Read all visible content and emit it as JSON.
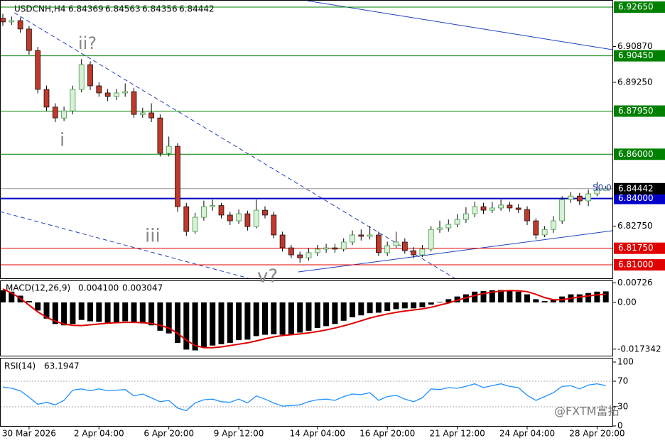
{
  "chart_data": [
    {
      "type": "candlestick",
      "symbol": "USDCNH,H4",
      "categories": [
        null,
        null,
        null,
        "30 Mar 2026",
        null,
        null,
        null,
        null,
        null,
        null,
        null,
        "2 Apr 04:00",
        null,
        null,
        null,
        null,
        null,
        null,
        null,
        "6 Apr 20:00",
        null,
        null,
        null,
        null,
        null,
        null,
        null,
        "9 Apr 12:00",
        null,
        null,
        null,
        null,
        null,
        null,
        null,
        null,
        "14 Apr 04:00",
        null,
        null,
        null,
        null,
        null,
        null,
        null,
        "16 Apr 20:00",
        null,
        null,
        null,
        null,
        null,
        null,
        null,
        "21 Apr 12:00",
        null,
        null,
        null,
        null,
        null,
        null,
        null,
        "24 Apr 04:00",
        null,
        null,
        null,
        null,
        null,
        null,
        null,
        "28 Apr 20:00",
        null
      ],
      "candles": [
        [
          6.9215,
          6.9235,
          6.918,
          6.9198
        ],
        [
          6.9198,
          6.9222,
          6.9185,
          6.9204
        ],
        [
          6.9204,
          6.9218,
          6.915,
          6.9166
        ],
        [
          6.9166,
          6.918,
          6.905,
          6.9069
        ],
        [
          6.9069,
          6.9085,
          6.8875,
          6.8893
        ],
        [
          6.8893,
          6.891,
          6.8795,
          6.8813
        ],
        [
          6.8813,
          6.883,
          6.8745,
          6.8764
        ],
        [
          6.8764,
          6.8815,
          6.875,
          6.8796
        ],
        [
          6.8796,
          6.891,
          6.878,
          6.8893
        ],
        [
          6.8893,
          6.903,
          6.888,
          6.9005
        ],
        [
          6.9005,
          6.902,
          6.889,
          6.8909
        ],
        [
          6.8909,
          6.8925,
          6.886,
          6.8877
        ],
        [
          6.8877,
          6.8895,
          6.884,
          6.8861
        ],
        [
          6.8861,
          6.8895,
          6.8845,
          6.8877
        ],
        [
          6.8877,
          6.892,
          6.886,
          6.8883
        ],
        [
          6.8883,
          6.89,
          6.8765,
          6.878
        ],
        [
          6.878,
          6.881,
          6.8765,
          6.8787
        ],
        [
          6.8787,
          6.883,
          6.8745,
          6.8764
        ],
        [
          6.8764,
          6.878,
          6.859,
          6.8604
        ],
        [
          6.8604,
          6.868,
          6.859,
          6.8636
        ],
        [
          6.8636,
          6.865,
          6.834,
          6.8363
        ],
        [
          6.8363,
          6.838,
          6.823,
          6.8251
        ],
        [
          6.8251,
          6.8335,
          6.824,
          6.8315
        ],
        [
          6.8315,
          6.839,
          6.83,
          6.8363
        ],
        [
          6.8363,
          6.8395,
          6.8345,
          6.8368
        ],
        [
          6.8368,
          6.838,
          6.831,
          6.8325
        ],
        [
          6.8325,
          6.834,
          6.828,
          6.8299
        ],
        [
          6.8299,
          6.835,
          6.8285,
          6.8331
        ],
        [
          6.8331,
          6.8345,
          6.8255,
          6.8273
        ],
        [
          6.8273,
          6.8395,
          6.8265,
          6.8347
        ],
        [
          6.8347,
          6.8365,
          6.831,
          6.8325
        ],
        [
          6.8325,
          6.834,
          6.822,
          6.8235
        ],
        [
          6.8235,
          6.825,
          6.816,
          6.8177
        ],
        [
          6.8177,
          6.819,
          6.813,
          6.8145
        ],
        [
          6.8145,
          6.816,
          6.811,
          6.8132
        ],
        [
          6.8132,
          6.8175,
          6.812,
          6.8155
        ],
        [
          6.8155,
          6.819,
          6.814,
          6.8171
        ],
        [
          6.8171,
          6.8195,
          6.8155,
          6.8177
        ],
        [
          6.8177,
          6.8195,
          6.8155,
          6.8171
        ],
        [
          6.8171,
          6.822,
          6.816,
          6.8203
        ],
        [
          6.8203,
          6.8255,
          6.819,
          6.8235
        ],
        [
          6.8235,
          6.826,
          6.821,
          6.8229
        ],
        [
          6.8229,
          6.8275,
          6.8215,
          6.8235
        ],
        [
          6.8235,
          6.825,
          6.814,
          6.8155
        ],
        [
          6.8155,
          6.8205,
          6.814,
          6.8187
        ],
        [
          6.8187,
          6.825,
          6.8175,
          6.8203
        ],
        [
          6.8203,
          6.822,
          6.815,
          6.8164
        ],
        [
          6.8164,
          6.818,
          6.813,
          6.8145
        ],
        [
          6.8145,
          6.819,
          6.8135,
          6.8171
        ],
        [
          6.8171,
          6.8275,
          6.816,
          6.826
        ],
        [
          6.826,
          6.83,
          6.8245,
          6.8267
        ],
        [
          6.8267,
          6.8305,
          6.825,
          6.8283
        ],
        [
          6.8283,
          6.833,
          6.827,
          6.8305
        ],
        [
          6.8305,
          6.836,
          6.829,
          6.8331
        ],
        [
          6.8331,
          6.8385,
          6.8315,
          6.8363
        ],
        [
          6.8363,
          6.838,
          6.833,
          6.8347
        ],
        [
          6.8347,
          6.8385,
          6.8335,
          6.8357
        ],
        [
          6.8357,
          6.8395,
          6.8345,
          6.837
        ],
        [
          6.837,
          6.8385,
          6.834,
          6.8357
        ],
        [
          6.8357,
          6.8375,
          6.8335,
          6.835
        ],
        [
          6.835,
          6.8365,
          6.828,
          6.8299
        ],
        [
          6.8299,
          6.831,
          6.8215,
          6.8235
        ],
        [
          6.8235,
          6.8275,
          6.8225,
          6.826
        ],
        [
          6.826,
          6.832,
          6.8245,
          6.8299
        ],
        [
          6.8299,
          6.841,
          6.8285,
          6.8395
        ],
        [
          6.8395,
          6.843,
          6.838,
          6.8411
        ],
        [
          6.8411,
          6.8425,
          6.837,
          6.8389
        ],
        [
          6.8389,
          6.844,
          6.8365,
          6.8421
        ],
        [
          6.8421,
          6.8475,
          6.841,
          6.8437
        ],
        [
          6.84369,
          6.84563,
          6.84356,
          6.84442
        ]
      ],
      "up_color": "#2f8f2f",
      "down_color": "#c0392b",
      "ylim": [
        6.8036,
        6.9294
      ],
      "yticks": [
        {
          "value": 6.9087,
          "label": "6.90870"
        },
        {
          "value": 6.8925,
          "label": "6.89250"
        },
        {
          "value": 6.8275,
          "label": "6.82750"
        }
      ],
      "levels": [
        {
          "value": 6.9265,
          "label": "6.92650",
          "color": "#008000"
        },
        {
          "value": 6.9045,
          "label": "6.90450",
          "color": "#008000"
        },
        {
          "value": 6.8795,
          "label": "6.87950",
          "color": "#008000"
        },
        {
          "value": 6.86,
          "label": "6.86000",
          "color": "#008000"
        },
        {
          "value": 6.84,
          "label": "6.84000",
          "color": "#0000c8"
        },
        {
          "value": 6.8175,
          "label": "6.81750",
          "color": "#e00000"
        },
        {
          "value": 6.81,
          "label": "6.81000",
          "color": "#e00000"
        }
      ],
      "annotations": [
        "ii?",
        "i",
        "iii",
        "v?",
        "50.0"
      ],
      "watermark": "@FXTM富拓"
    },
    {
      "type": "macd",
      "title": "MACD(12,26,9)",
      "current": [
        {
          "value": 0.0041,
          "label": "0.004100"
        },
        0.003047
      ],
      "histogram": {
        "color": "#000000",
        "values": [
          0.0045,
          0.004,
          0.0025,
          0.0005,
          -0.003,
          -0.006,
          -0.008,
          -0.0085,
          -0.008,
          -0.0065,
          -0.007,
          -0.0072,
          -0.0075,
          -0.0074,
          -0.007,
          -0.0075,
          -0.0078,
          -0.0085,
          -0.0105,
          -0.0115,
          -0.015,
          -0.0175,
          -0.0178,
          -0.0168,
          -0.016,
          -0.0155,
          -0.015,
          -0.014,
          -0.0138,
          -0.0125,
          -0.012,
          -0.0118,
          -0.012,
          -0.0118,
          -0.0112,
          -0.0105,
          -0.0095,
          -0.0088,
          -0.008,
          -0.0068,
          -0.0055,
          -0.0048,
          -0.004,
          -0.0038,
          -0.0032,
          -0.0025,
          -0.0022,
          -0.0022,
          -0.0018,
          -0.0008,
          0.0002,
          0.0012,
          0.0022,
          0.003,
          0.004,
          0.0042,
          0.0045,
          0.0046,
          0.0044,
          0.004,
          0.003,
          0.0012,
          0.0005,
          0.001,
          0.0022,
          0.003,
          0.003,
          0.0035,
          0.004,
          0.0041
        ]
      },
      "signal": {
        "color": "#e00000",
        "values": [
          0.005,
          0.0035,
          0.0015,
          -0.001,
          -0.0035,
          -0.0055,
          -0.007,
          -0.008,
          -0.0085,
          -0.0086,
          -0.0083,
          -0.008,
          -0.0077,
          -0.0075,
          -0.0074,
          -0.0074,
          -0.0075,
          -0.0078,
          -0.0085,
          -0.0095,
          -0.0115,
          -0.014,
          -0.016,
          -0.0168,
          -0.0168,
          -0.0165,
          -0.016,
          -0.0155,
          -0.015,
          -0.0143,
          -0.0135,
          -0.0128,
          -0.0123,
          -0.012,
          -0.0117,
          -0.0113,
          -0.0108,
          -0.0102,
          -0.0095,
          -0.0087,
          -0.0078,
          -0.0068,
          -0.0058,
          -0.005,
          -0.0043,
          -0.0037,
          -0.0032,
          -0.0028,
          -0.0024,
          -0.0018,
          -0.001,
          -0.0002,
          0.0008,
          0.0017,
          0.0026,
          0.0033,
          0.0038,
          0.0042,
          0.0044,
          0.0043,
          0.004,
          0.003,
          0.0018,
          0.001,
          0.001,
          0.0015,
          0.002,
          0.0024,
          0.0028,
          0.003047
        ]
      },
      "ylim": [
        -0.0195,
        0.0079
      ],
      "yticks": [
        0.00726,
        {
          "value": 0,
          "label": "0.00"
        },
        -0.017342
      ]
    },
    {
      "type": "line",
      "title": "RSI(14)",
      "color": "#1e90ff",
      "values": [
        61,
        59,
        55,
        45,
        34,
        37,
        33,
        40,
        56,
        58,
        55,
        58,
        55,
        56,
        57,
        47,
        50,
        44,
        38,
        40,
        28,
        24,
        36,
        41,
        42,
        38,
        37,
        42,
        36,
        47,
        42,
        36,
        31,
        32,
        33,
        38,
        41,
        42,
        40,
        46,
        50,
        49,
        52,
        40,
        46,
        48,
        42,
        38,
        44,
        58,
        57,
        60,
        59,
        62,
        66,
        60,
        63,
        66,
        62,
        60,
        48,
        40,
        46,
        52,
        62,
        63,
        58,
        64,
        66,
        63.1947
      ],
      "ylim": [
        0,
        100
      ],
      "yticks": [
        100,
        70,
        30,
        0
      ],
      "levels": [
        70,
        30
      ]
    }
  ]
}
